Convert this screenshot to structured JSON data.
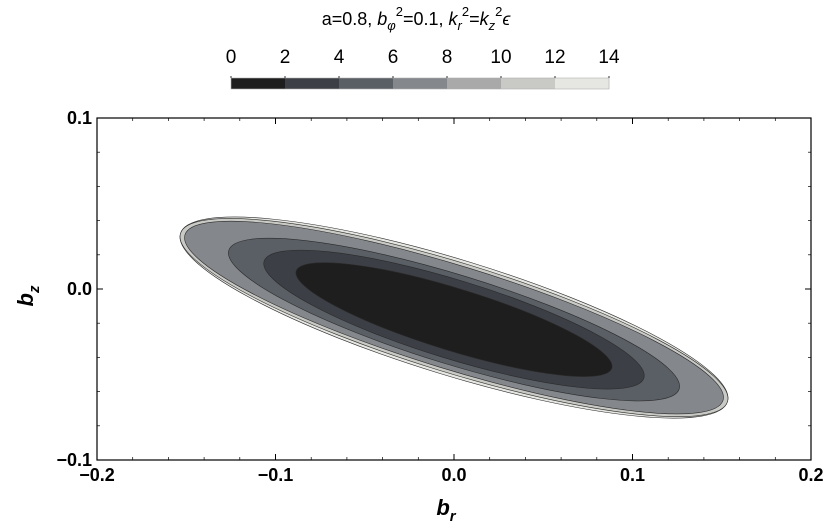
{
  "chart_data": {
    "type": "contour",
    "title": {
      "prefix": "a=0.8, ",
      "b": "b",
      "b_sub": "φ",
      "b_sup": "2",
      "b_rest": "=0.1, ",
      "k1": "k",
      "k1_sub": "r",
      "k1_sup": "2",
      "eq": "=",
      "k2": "k",
      "k2_sub": "z",
      "k2_sup": "2",
      "eps": "ϵ"
    },
    "xlabel": {
      "main": "b",
      "sub": "r"
    },
    "ylabel": {
      "main": "b",
      "sub": "z"
    },
    "xlim": [
      -0.2,
      0.2
    ],
    "ylim": [
      -0.1,
      0.1
    ],
    "x_ticks": [
      {
        "value": -0.2,
        "label": "−0.2"
      },
      {
        "value": -0.1,
        "label": "−0.1"
      },
      {
        "value": 0.0,
        "label": "0.0"
      },
      {
        "value": 0.1,
        "label": "0.1"
      },
      {
        "value": 0.2,
        "label": "0.2"
      }
    ],
    "y_ticks": [
      {
        "value": 0.1,
        "label": "0.1"
      },
      {
        "value": 0.0,
        "label": "0.0"
      },
      {
        "value": -0.1,
        "label": "−0.1"
      }
    ],
    "legend": {
      "placement": "top",
      "ticks": [
        "0",
        "2",
        "4",
        "6",
        "8",
        "10",
        "12",
        "14"
      ],
      "bins": [
        {
          "from": 0,
          "to": 2,
          "color": "#1e1e1e"
        },
        {
          "from": 2,
          "to": 4,
          "color": "#3c3f45"
        },
        {
          "from": 4,
          "to": 6,
          "color": "#5a5f66"
        },
        {
          "from": 6,
          "to": 8,
          "color": "#84878b"
        },
        {
          "from": 8,
          "to": 10,
          "color": "#a9a9a9"
        },
        {
          "from": 10,
          "to": 12,
          "color": "#c9cac6"
        },
        {
          "from": 12,
          "to": 14,
          "color": "#e6e7e2"
        }
      ]
    },
    "contours": [
      {
        "level": 12,
        "color": "#e6e7e2",
        "cx": 0.0,
        "cy": -0.0167,
        "rx": 0.1603,
        "ry": 0.0337,
        "angle_deg": -17.1
      },
      {
        "level": 10,
        "color": "#c9cac6",
        "cx": 0.0,
        "cy": -0.0167,
        "rx": 0.1603,
        "ry": 0.032,
        "angle_deg": -17.1
      },
      {
        "level": 8,
        "color": "#84878b",
        "cx": 0.0,
        "cy": -0.0167,
        "rx": 0.1577,
        "ry": 0.0302,
        "angle_deg": -17.1
      },
      {
        "level": 6,
        "color": "#5a5f66",
        "cx": 0.0,
        "cy": -0.0179,
        "rx": 0.132,
        "ry": 0.0261,
        "angle_deg": -17.1
      },
      {
        "level": 4,
        "color": "#3c3f45",
        "cx": 0.0,
        "cy": -0.0179,
        "rx": 0.1113,
        "ry": 0.023,
        "angle_deg": -17.1
      },
      {
        "level": 2,
        "color": "#1e1e1e",
        "cx": 0.0,
        "cy": -0.0179,
        "rx": 0.0925,
        "ry": 0.0182,
        "angle_deg": -17.1
      }
    ]
  }
}
